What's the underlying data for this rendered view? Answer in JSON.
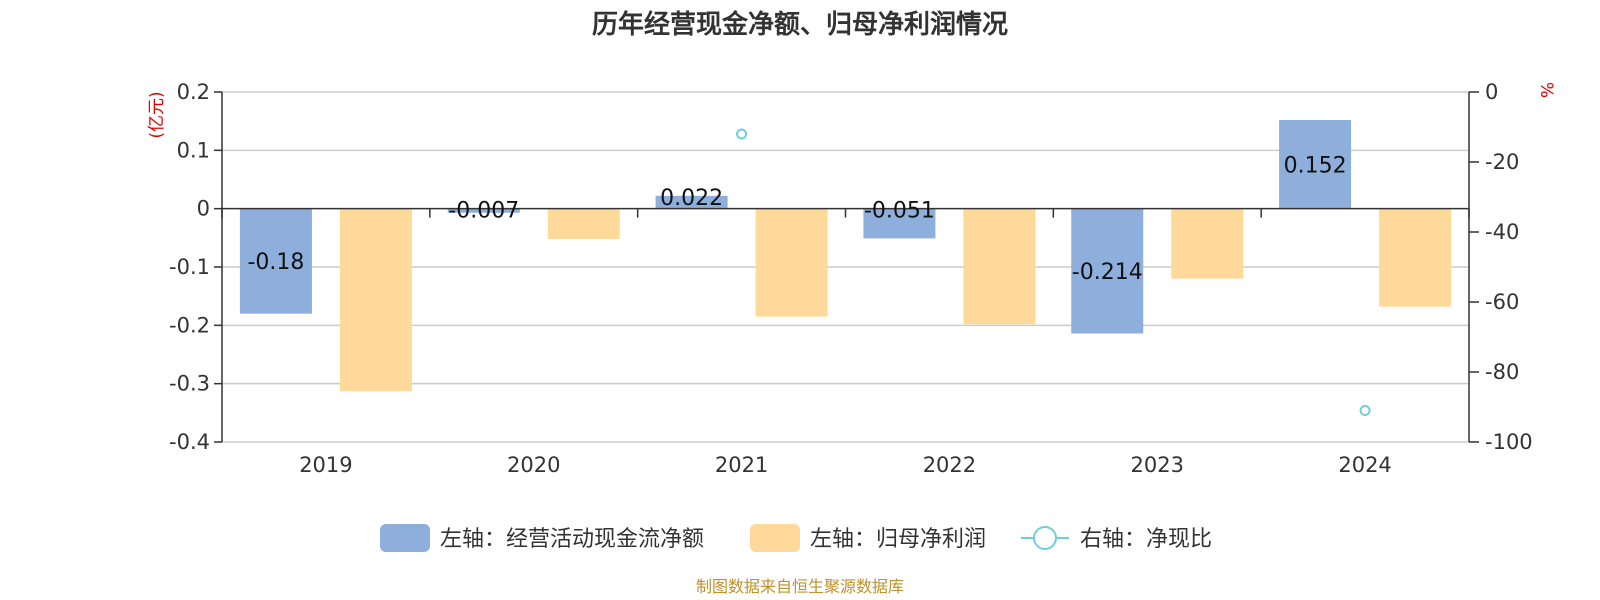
{
  "colors": {
    "cash_flow": "#8eaedb",
    "net_profit": "#ffd99a",
    "ratio": "#6fcfd8",
    "unit_text": "#e00000",
    "source_text": "#c0902a"
  },
  "source": "制图数据来自恒生聚源数据库",
  "chart_data": {
    "type": "bar",
    "title": "历年经营现金净额、归母净利润情况",
    "categories": [
      "2019",
      "2020",
      "2021",
      "2022",
      "2023",
      "2024"
    ],
    "left_axis": {
      "unit": "(亿元)",
      "ylim": [
        -0.4,
        0.2
      ],
      "ticks": [
        0.2,
        0.1,
        0,
        -0.1,
        -0.2,
        -0.3,
        -0.4
      ],
      "tick_labels": [
        "0.2",
        "0.1",
        "0",
        "-0.1",
        "-0.2",
        "-0.3",
        "-0.4"
      ]
    },
    "right_axis": {
      "unit": "%",
      "ylim": [
        -100,
        0
      ],
      "ticks": [
        0,
        -20,
        -40,
        -60,
        -80,
        -100
      ],
      "tick_labels": [
        "0",
        "-20",
        "-40",
        "-60",
        "-80",
        "-100"
      ]
    },
    "grid": true,
    "legend_position": "bottom",
    "series": [
      {
        "name": "左轴：经营活动现金流净额",
        "type": "bar",
        "axis": "left",
        "values": [
          -0.18,
          -0.007,
          0.022,
          -0.051,
          -0.214,
          0.152
        ],
        "labels": [
          "-0.18",
          "-0.007",
          "0.022",
          "-0.051",
          "-0.214",
          "0.152"
        ]
      },
      {
        "name": "左轴：归母净利润",
        "type": "bar",
        "axis": "left",
        "values": [
          -0.313,
          -0.052,
          -0.185,
          -0.198,
          -0.12,
          -0.168
        ]
      },
      {
        "name": "右轴：净现比",
        "type": "scatter",
        "axis": "right",
        "values": [
          null,
          null,
          -12,
          null,
          null,
          -91
        ]
      }
    ]
  }
}
